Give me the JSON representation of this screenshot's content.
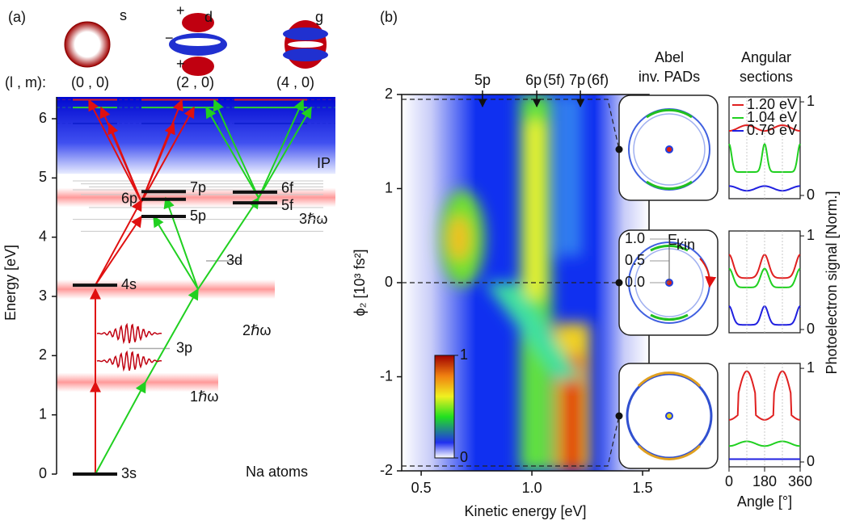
{
  "panel_a": {
    "label": "(a)",
    "orbitals": [
      "s",
      "d",
      "g"
    ],
    "d_signs": [
      "+",
      "−",
      "+"
    ],
    "lm_label": "(l , m):",
    "lm": [
      "(0 , 0)",
      "(2 , 0)",
      "(4 , 0)"
    ],
    "y_label": "Energy [eV]",
    "ylim": [
      0,
      6
    ],
    "yticks": [
      0,
      1,
      2,
      3,
      4,
      5,
      6
    ],
    "levels": [
      {
        "label": "3s",
        "energy": 0
      },
      {
        "label": "4s",
        "energy": 3.19
      },
      {
        "label": "5p",
        "energy": 4.35
      },
      {
        "label": "6p",
        "energy": 4.64
      },
      {
        "label": "7p",
        "energy": 4.77
      },
      {
        "label": "5f",
        "energy": 4.58
      },
      {
        "label": "6f",
        "energy": 4.76
      }
    ],
    "faded_levels": [
      {
        "label": "3p",
        "energy": 2.12
      },
      {
        "label": "3d",
        "energy": 3.6
      }
    ],
    "photon_bands": [
      {
        "label": "1ℏω",
        "energy": 1.55
      },
      {
        "label": "2ℏω",
        "energy": 3.12
      },
      {
        "label": "3ℏω",
        "energy": 4.67
      }
    ],
    "continuum_levels": [
      {
        "energy": 6.32,
        "color": "#e02020"
      },
      {
        "energy": 6.19,
        "color": "#30d030"
      },
      {
        "energy": 5.92,
        "color": "#1020d0"
      }
    ],
    "ip": {
      "label": "IP",
      "energy": 5.07
    },
    "atoms_label": "Na atoms"
  },
  "panel_b": {
    "label": "(b)",
    "x_label": "Kinetic energy [eV]",
    "y_label": "ϕ₂ [10³ fs²]",
    "xlim": [
      0.412,
      1.529
    ],
    "xticks": [
      0.5,
      {
        "value": 1,
        "label": "1.0"
      },
      1.5
    ],
    "ylim": [
      -2,
      2
    ],
    "yticks": [
      -2,
      -1,
      0,
      1,
      2
    ],
    "peaks": [
      {
        "label": "5p",
        "extra": null,
        "energy": 0.777,
        "color": "#2020e0"
      },
      {
        "label": "6p",
        "extra": "(5f)",
        "energy": 1.022,
        "color": "#20d020"
      },
      {
        "label": "7p",
        "extra": "(6f)",
        "energy": 1.219,
        "color": "#e02020"
      }
    ],
    "colorbar_ticks": [
      0,
      1
    ],
    "pads_title": [
      "Abel",
      "inv. PADs"
    ],
    "sections_title": [
      "Angular",
      "sections"
    ],
    "ekin": {
      "main": "E",
      "sub": "kin"
    },
    "ekin_ticks": [
      {
        "value": 1,
        "label": "1.0"
      },
      0.5,
      {
        "value": 0,
        "label": "0.0"
      }
    ],
    "sections_ylabel": "Photoelectron signal [Norm.]",
    "sections_xlabel": "Angle [°]",
    "sections_xticks": [
      0,
      180,
      360
    ],
    "sections_yticks": [
      0,
      1
    ],
    "legend": [
      {
        "name": "1.20 eV",
        "color": "#e02020"
      },
      {
        "name": "1.04 eV",
        "color": "#20d020"
      },
      {
        "name": "0.76 eV",
        "color": "#2020e0"
      }
    ]
  }
}
